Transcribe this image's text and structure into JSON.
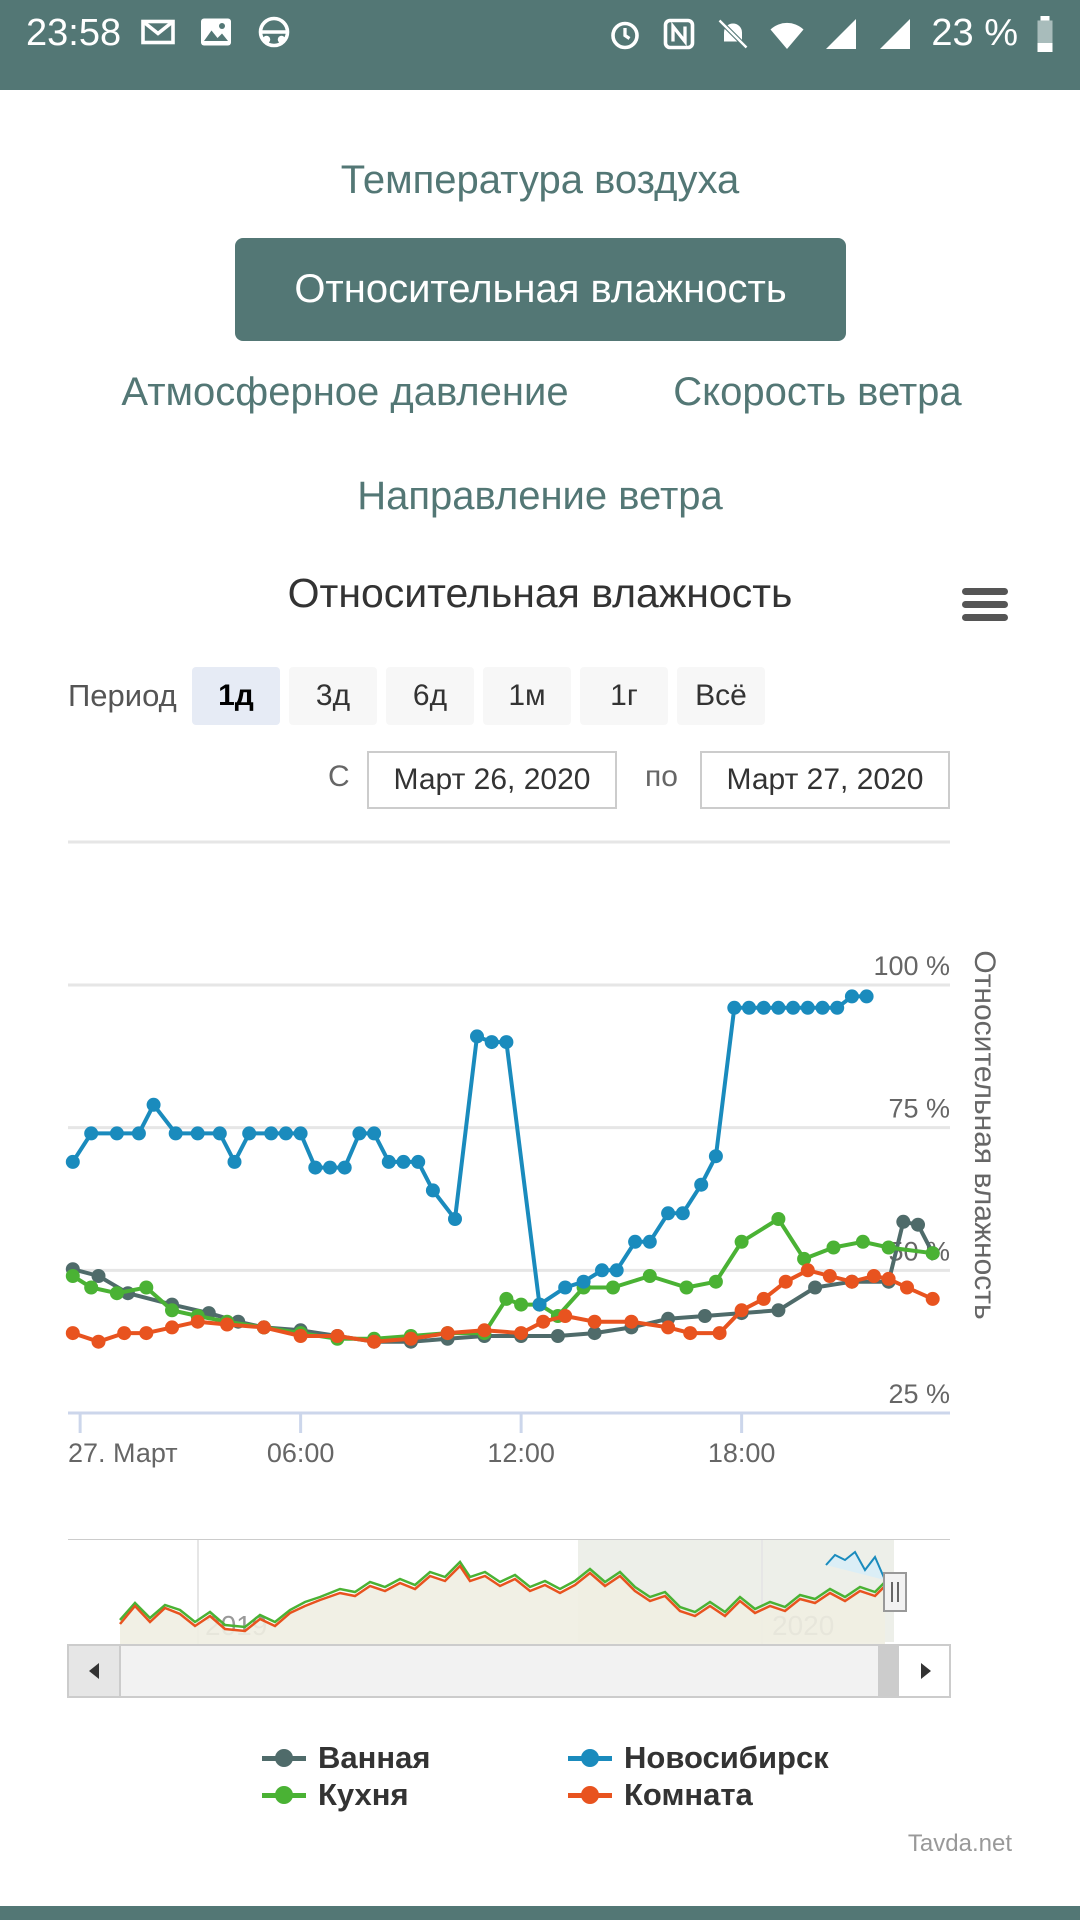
{
  "status_bar": {
    "time": "23:58",
    "battery_text": "23 %",
    "left_icons": [
      "mail-icon",
      "image-icon",
      "vpn-icon"
    ],
    "right_icons": [
      "alarm-icon",
      "nfc-icon",
      "mute-icon",
      "wifi-icon",
      "signal-icon",
      "signal-icon",
      "battery-icon"
    ]
  },
  "nav": {
    "items": [
      "Температура воздуха",
      "Относительная влажность",
      "Атмосферное давление",
      "Скорость ветра",
      "Направление ветра"
    ],
    "active_index": 1
  },
  "chart_header": {
    "title": "Относительная влажность",
    "menu_icon": "hamburger-menu-icon"
  },
  "range_selector": {
    "label": "Период",
    "buttons": [
      "1д",
      "3д",
      "6д",
      "1м",
      "1г",
      "Всё"
    ],
    "selected": "1д",
    "from_label": "С",
    "from_value": "Март 26, 2020",
    "to_label": "по",
    "to_value": "Март 27, 2020"
  },
  "chart_data": {
    "type": "line",
    "title": "",
    "ylabel": "Относительная влажность",
    "ylim": [
      25,
      100
    ],
    "yticks": [
      "25 %",
      "50 %",
      "75 %",
      "100 %"
    ],
    "y_tick_values": [
      25,
      50,
      75,
      100
    ],
    "xlim": [
      "26.03.2020 23:40",
      "27.03.2020 23:40"
    ],
    "xtick_labels": [
      "27. Март",
      "06:00",
      "12:00",
      "18:00"
    ],
    "xtick_hours": [
      0,
      6,
      12,
      18
    ],
    "x_unit": "hours from 27.03.2020 00:00",
    "grid": true,
    "legend_position": "bottom",
    "series": [
      {
        "name": "Ванная",
        "color": "#4f6b6a",
        "points": [
          [
            -0.2,
            50.2
          ],
          [
            0.5,
            49
          ],
          [
            1.3,
            46
          ],
          [
            2.5,
            44
          ],
          [
            3.5,
            42.5
          ],
          [
            4.3,
            41
          ],
          [
            5,
            40
          ],
          [
            6,
            39.5
          ],
          [
            7,
            38.5
          ],
          [
            8,
            37.5
          ],
          [
            9,
            37.5
          ],
          [
            10,
            38
          ],
          [
            11,
            38.5
          ],
          [
            12,
            38.5
          ],
          [
            13,
            38.5
          ],
          [
            14,
            39
          ],
          [
            15,
            40
          ],
          [
            16,
            41.5
          ],
          [
            17,
            42
          ],
          [
            18,
            42.5
          ],
          [
            19,
            43
          ],
          [
            20,
            47
          ],
          [
            21,
            48
          ],
          [
            22,
            48
          ],
          [
            22.4,
            58.5
          ],
          [
            22.8,
            58
          ],
          [
            23.2,
            53
          ]
        ]
      },
      {
        "name": "Новосибирск",
        "color": "#1a8bbd",
        "points": [
          [
            -0.2,
            69
          ],
          [
            0.3,
            74
          ],
          [
            1,
            74
          ],
          [
            1.6,
            74
          ],
          [
            2,
            79
          ],
          [
            2.6,
            74
          ],
          [
            3.2,
            74
          ],
          [
            3.8,
            74
          ],
          [
            4.2,
            69
          ],
          [
            4.6,
            74
          ],
          [
            5.2,
            74
          ],
          [
            5.6,
            74
          ],
          [
            6,
            74
          ],
          [
            6.4,
            68
          ],
          [
            6.8,
            68
          ],
          [
            7.2,
            68
          ],
          [
            7.6,
            74
          ],
          [
            8,
            74
          ],
          [
            8.4,
            69
          ],
          [
            8.8,
            69
          ],
          [
            9.2,
            69
          ],
          [
            9.6,
            64
          ],
          [
            10.2,
            59
          ],
          [
            10.8,
            91
          ],
          [
            11.2,
            90
          ],
          [
            11.6,
            90
          ],
          [
            12.5,
            44
          ],
          [
            13.2,
            47
          ],
          [
            13.7,
            48
          ],
          [
            14.2,
            50
          ],
          [
            14.6,
            50
          ],
          [
            15.1,
            55
          ],
          [
            15.5,
            55
          ],
          [
            16,
            60
          ],
          [
            16.4,
            60
          ],
          [
            16.9,
            65
          ],
          [
            17.3,
            70
          ],
          [
            17.8,
            96
          ],
          [
            18.2,
            96
          ],
          [
            18.6,
            96
          ],
          [
            19,
            96
          ],
          [
            19.4,
            96
          ],
          [
            19.8,
            96
          ],
          [
            20.2,
            96
          ],
          [
            20.6,
            96
          ],
          [
            21,
            98
          ],
          [
            21.4,
            98
          ]
        ]
      },
      {
        "name": "Кухня",
        "color": "#4ab234",
        "points": [
          [
            -0.2,
            49
          ],
          [
            0.3,
            47
          ],
          [
            1,
            46
          ],
          [
            1.8,
            47
          ],
          [
            2.5,
            43
          ],
          [
            3.2,
            42
          ],
          [
            4,
            41
          ],
          [
            5,
            40
          ],
          [
            6,
            39
          ],
          [
            7,
            38
          ],
          [
            8,
            38
          ],
          [
            9,
            38.5
          ],
          [
            10,
            39
          ],
          [
            11,
            39
          ],
          [
            11.6,
            45
          ],
          [
            12,
            44
          ],
          [
            12.5,
            44
          ],
          [
            13,
            42
          ],
          [
            13.7,
            47
          ],
          [
            14.5,
            47
          ],
          [
            15.5,
            49
          ],
          [
            16.5,
            47
          ],
          [
            17.3,
            48
          ],
          [
            18,
            55
          ],
          [
            19,
            59
          ],
          [
            19.7,
            52
          ],
          [
            20.5,
            54
          ],
          [
            21.3,
            55
          ],
          [
            22,
            54
          ],
          [
            23.2,
            53
          ]
        ]
      },
      {
        "name": "Комната",
        "color": "#e8531f",
        "points": [
          [
            -0.2,
            39
          ],
          [
            0.5,
            37.5
          ],
          [
            1.2,
            39
          ],
          [
            1.8,
            39
          ],
          [
            2.5,
            40
          ],
          [
            3.2,
            41
          ],
          [
            4,
            40.5
          ],
          [
            5,
            40
          ],
          [
            6,
            38.5
          ],
          [
            7,
            38.5
          ],
          [
            8,
            37.5
          ],
          [
            9,
            38
          ],
          [
            10,
            39
          ],
          [
            11,
            39.5
          ],
          [
            12,
            39
          ],
          [
            12.6,
            41
          ],
          [
            13.2,
            42
          ],
          [
            14,
            41
          ],
          [
            15,
            41
          ],
          [
            16,
            40
          ],
          [
            16.6,
            39
          ],
          [
            17.4,
            39
          ],
          [
            18,
            43
          ],
          [
            18.6,
            45
          ],
          [
            19.2,
            48
          ],
          [
            19.8,
            50
          ],
          [
            20.4,
            49
          ],
          [
            21,
            48
          ],
          [
            21.6,
            49
          ],
          [
            22,
            48.5
          ],
          [
            22.5,
            47
          ],
          [
            23.2,
            45
          ]
        ]
      }
    ]
  },
  "navigator": {
    "labels": [
      "2019",
      "2020"
    ],
    "left_arrow": "left-arrow-icon",
    "right_arrow": "right-arrow-icon",
    "handle_icon": "drag-handle-icon"
  },
  "credit": "Tavda.net"
}
